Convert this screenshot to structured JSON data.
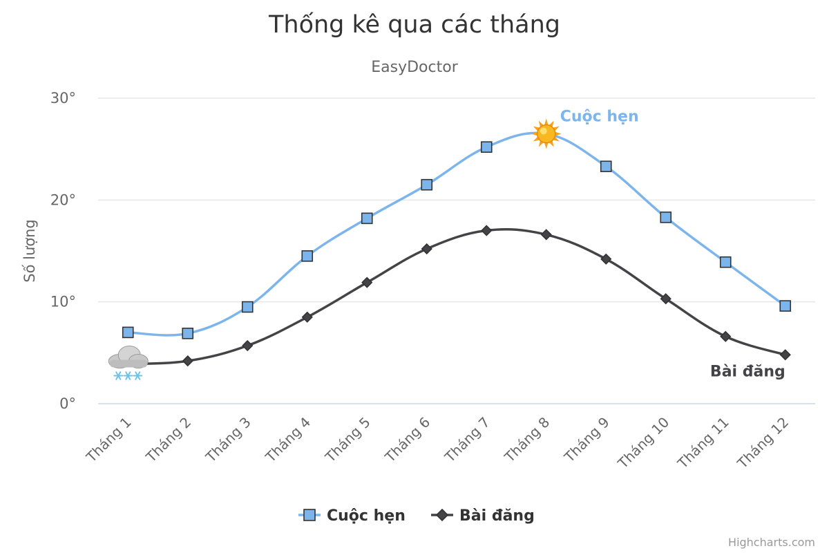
{
  "chart_data": {
    "type": "line",
    "title": "Thống kê qua các tháng",
    "subtitle": "EasyDoctor",
    "xlabel": "",
    "ylabel": "Số lượng",
    "categories": [
      "Tháng 1",
      "Tháng 2",
      "Tháng 3",
      "Tháng 4",
      "Tháng 5",
      "Tháng 6",
      "Tháng 7",
      "Tháng 8",
      "Tháng 9",
      "Tháng 10",
      "Tháng 11",
      "Tháng 12"
    ],
    "ylim": [
      0,
      30
    ],
    "yticks": [
      0,
      10,
      20,
      30
    ],
    "ytick_labels": [
      "0°",
      "10°",
      "20°",
      "30°"
    ],
    "grid": true,
    "legend_position": "bottom-center",
    "series": [
      {
        "name": "Cuộc hẹn",
        "color": "#7cb5ec",
        "marker": "square",
        "values": [
          7.0,
          6.9,
          9.5,
          14.5,
          18.2,
          21.5,
          25.2,
          26.5,
          23.3,
          18.3,
          13.9,
          9.6
        ],
        "marker_icons": [
          {
            "index": 7,
            "icon": "sun-icon"
          }
        ]
      },
      {
        "name": "Bài đăng",
        "color": "#434348",
        "marker": "diamond",
        "values": [
          3.9,
          4.2,
          5.7,
          8.5,
          11.9,
          15.2,
          17.0,
          16.6,
          14.2,
          10.3,
          6.6,
          4.8
        ],
        "marker_icons": [
          {
            "index": 0,
            "icon": "snow-cloud-icon"
          }
        ]
      }
    ],
    "credits": "Highcharts.com"
  }
}
